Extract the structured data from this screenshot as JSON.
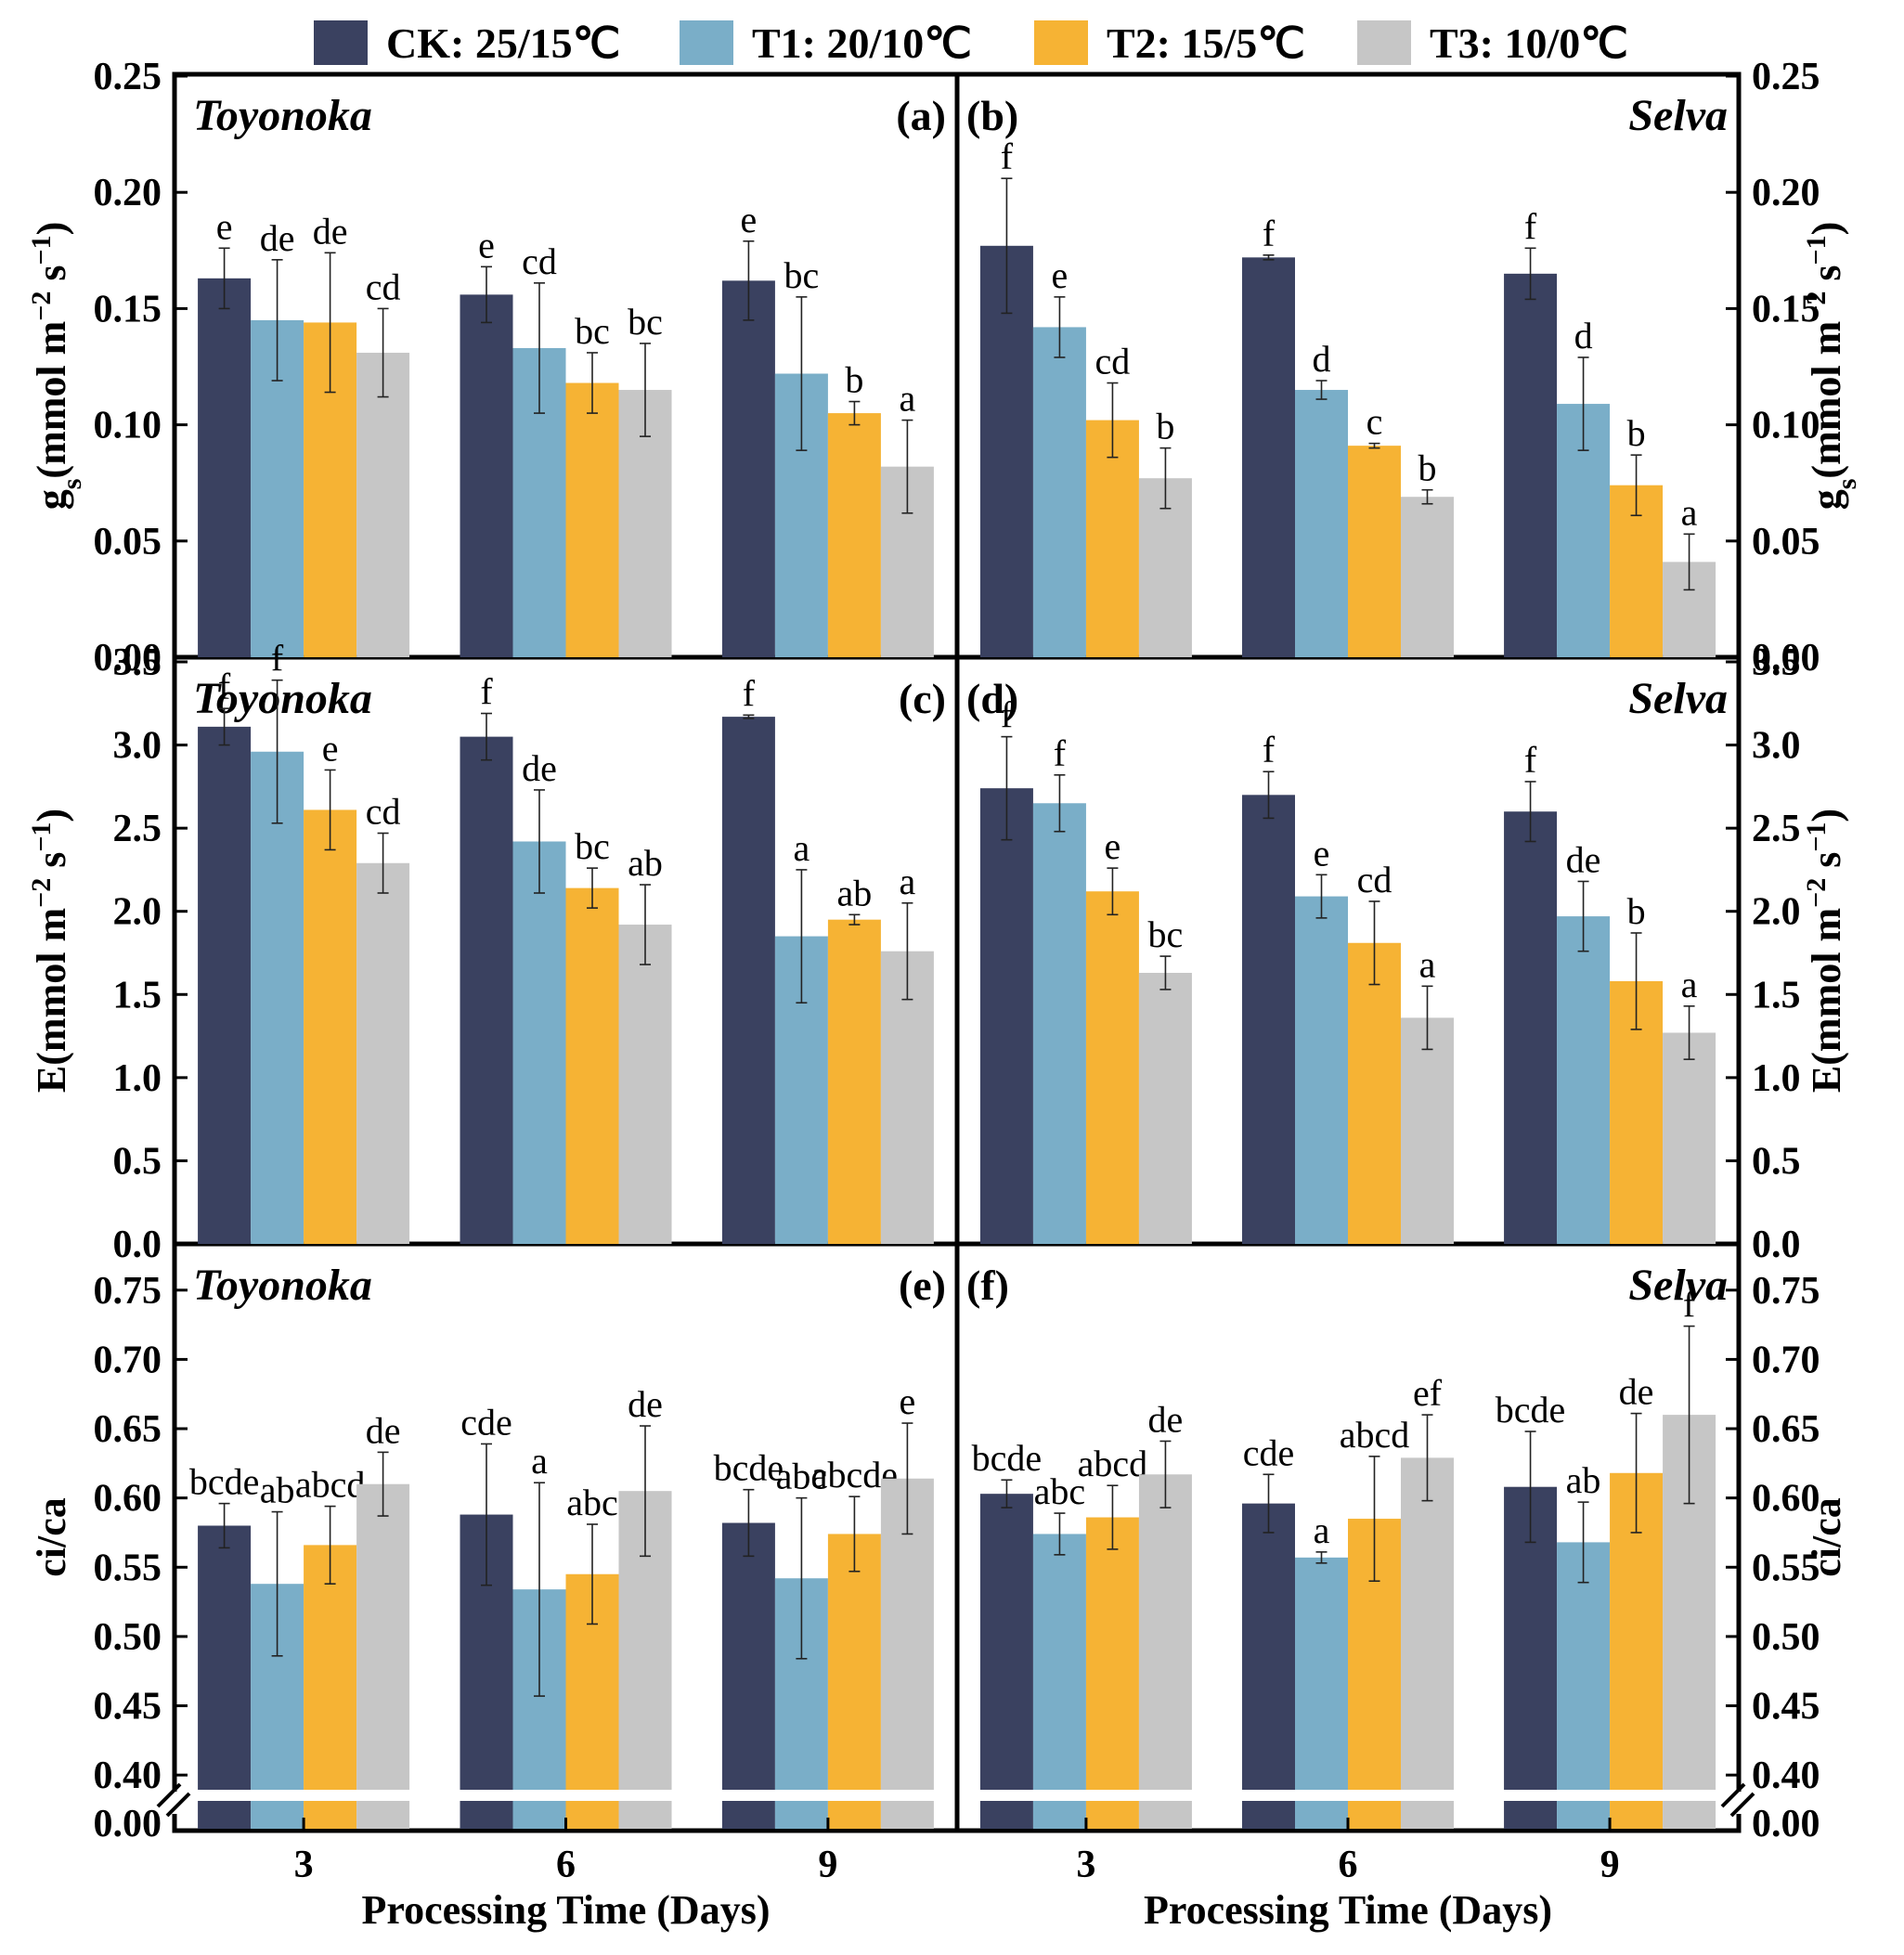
{
  "legend": [
    {
      "label": "CK: 25/15℃",
      "color": "#3a4160"
    },
    {
      "label": "T1: 20/10℃",
      "color": "#7aaec8"
    },
    {
      "label": "T2: 15/5℃",
      "color": "#f6b334"
    },
    {
      "label": "T3: 10/0℃",
      "color": "#c6c6c6"
    }
  ],
  "x_title": "Processing Time (Days)",
  "categories": [
    "3",
    "6",
    "9"
  ],
  "rows": [
    {
      "ylabel": "g_s(mmol m^-2 s^-1)",
      "ylabel_parts": {
        "main": "g",
        "sub": "s",
        "unit": "(mmol m",
        "sup1": "−2",
        "mid": " s",
        "sup2": "−1",
        "end": ")"
      },
      "ylim": [
        0,
        0.25
      ],
      "yticks": [
        "0.00",
        "0.05",
        "0.10",
        "0.15",
        "0.20",
        "0.25"
      ],
      "broken": false
    },
    {
      "ylabel": "E(mmol m^-2 s^-1)",
      "ylabel_parts": {
        "main": "E",
        "sub": "",
        "unit": "(mmol m",
        "sup1": "−2",
        "mid": " s",
        "sup2": "−1",
        "end": ")"
      },
      "ylim": [
        0,
        3.5
      ],
      "yticks": [
        "0.0",
        "0.5",
        "1.0",
        "1.5",
        "2.0",
        "2.5",
        "3.0",
        "3.5"
      ],
      "broken": false
    },
    {
      "ylabel": "ci/ca",
      "ylabel_parts": {
        "main": "ci/ca",
        "sub": "",
        "unit": "",
        "sup1": "",
        "mid": "",
        "sup2": "",
        "end": ""
      },
      "ylim": [
        0.38,
        0.78
      ],
      "yticks": [
        "0.40",
        "0.45",
        "0.50",
        "0.55",
        "0.60",
        "0.65",
        "0.70",
        "0.75"
      ],
      "broken_tick": "0.00",
      "broken": true
    }
  ],
  "chart_data": [
    {
      "type": "bar",
      "panel": "(a)",
      "cultivar": "Toyonoka",
      "row": 0,
      "col": 0,
      "categories": [
        "3",
        "6",
        "9"
      ],
      "series": [
        {
          "name": "CK: 25/15℃",
          "values": [
            0.163,
            0.156,
            0.162
          ],
          "errors": [
            0.013,
            0.012,
            0.017
          ],
          "letters": [
            "e",
            "e",
            "e"
          ]
        },
        {
          "name": "T1: 20/10℃",
          "values": [
            0.145,
            0.133,
            0.122
          ],
          "errors": [
            0.026,
            0.028,
            0.033
          ],
          "letters": [
            "de",
            "cd",
            "bc"
          ]
        },
        {
          "name": "T2: 15/5℃",
          "values": [
            0.144,
            0.118,
            0.105
          ],
          "errors": [
            0.03,
            0.013,
            0.005
          ],
          "letters": [
            "de",
            "bc",
            "b"
          ]
        },
        {
          "name": "T3: 10/0℃",
          "values": [
            0.131,
            0.115,
            0.082
          ],
          "errors": [
            0.019,
            0.02,
            0.02
          ],
          "letters": [
            "cd",
            "bc",
            "a"
          ]
        }
      ]
    },
    {
      "type": "bar",
      "panel": "(b)",
      "cultivar": "Selva",
      "row": 0,
      "col": 1,
      "categories": [
        "3",
        "6",
        "9"
      ],
      "series": [
        {
          "name": "CK: 25/15℃",
          "values": [
            0.177,
            0.172,
            0.165
          ],
          "errors": [
            0.029,
            0.001,
            0.011
          ],
          "letters": [
            "f",
            "f",
            "f"
          ]
        },
        {
          "name": "T1: 20/10℃",
          "values": [
            0.142,
            0.115,
            0.109
          ],
          "errors": [
            0.013,
            0.004,
            0.02
          ],
          "letters": [
            "e",
            "d",
            "d"
          ]
        },
        {
          "name": "T2: 15/5℃",
          "values": [
            0.102,
            0.091,
            0.074
          ],
          "errors": [
            0.016,
            0.001,
            0.013
          ],
          "letters": [
            "cd",
            "c",
            "b"
          ]
        },
        {
          "name": "T3: 10/0℃",
          "values": [
            0.077,
            0.069,
            0.041
          ],
          "errors": [
            0.013,
            0.003,
            0.012
          ],
          "letters": [
            "b",
            "b",
            "a"
          ]
        }
      ]
    },
    {
      "type": "bar",
      "panel": "(c)",
      "cultivar": "Toyonoka",
      "row": 1,
      "col": 0,
      "categories": [
        "3",
        "6",
        "9"
      ],
      "series": [
        {
          "name": "CK: 25/15℃",
          "values": [
            3.11,
            3.05,
            3.17
          ],
          "errors": [
            0.11,
            0.14,
            0.01
          ],
          "letters": [
            "f",
            "f",
            "f"
          ]
        },
        {
          "name": "T1: 20/10℃",
          "values": [
            2.96,
            2.42,
            1.85
          ],
          "errors": [
            0.43,
            0.31,
            0.4
          ],
          "letters": [
            "f",
            "de",
            "a"
          ]
        },
        {
          "name": "T2: 15/5℃",
          "values": [
            2.61,
            2.14,
            1.95
          ],
          "errors": [
            0.24,
            0.12,
            0.03
          ],
          "letters": [
            "e",
            "bc",
            "ab"
          ]
        },
        {
          "name": "T3: 10/0℃",
          "values": [
            2.29,
            1.92,
            1.76
          ],
          "errors": [
            0.18,
            0.24,
            0.29
          ],
          "letters": [
            "cd",
            "ab",
            "a"
          ]
        }
      ]
    },
    {
      "type": "bar",
      "panel": "(d)",
      "cultivar": "Selva",
      "row": 1,
      "col": 1,
      "categories": [
        "3",
        "6",
        "9"
      ],
      "series": [
        {
          "name": "CK: 25/15℃",
          "values": [
            2.74,
            2.7,
            2.6
          ],
          "errors": [
            0.31,
            0.14,
            0.18
          ],
          "letters": [
            "f",
            "f",
            "f"
          ]
        },
        {
          "name": "T1: 20/10℃",
          "values": [
            2.65,
            2.09,
            1.97
          ],
          "errors": [
            0.17,
            0.13,
            0.21
          ],
          "letters": [
            "f",
            "e",
            "de"
          ]
        },
        {
          "name": "T2: 15/5℃",
          "values": [
            2.12,
            1.81,
            1.58
          ],
          "errors": [
            0.14,
            0.25,
            0.29
          ],
          "letters": [
            "e",
            "cd",
            "b"
          ]
        },
        {
          "name": "T3: 10/0℃",
          "values": [
            1.63,
            1.36,
            1.27
          ],
          "errors": [
            0.1,
            0.19,
            0.16
          ],
          "letters": [
            "bc",
            "a",
            "a"
          ]
        }
      ]
    },
    {
      "type": "bar",
      "panel": "(e)",
      "cultivar": "Toyonoka",
      "row": 2,
      "col": 0,
      "categories": [
        "3",
        "6",
        "9"
      ],
      "series": [
        {
          "name": "CK: 25/15℃",
          "values": [
            0.58,
            0.588,
            0.582
          ],
          "errors": [
            0.016,
            0.051,
            0.024
          ],
          "letters": [
            "bcde",
            "cde",
            "bcde"
          ]
        },
        {
          "name": "T1: 20/10℃",
          "values": [
            0.538,
            0.534,
            0.542
          ],
          "errors": [
            0.052,
            0.077,
            0.058
          ],
          "letters": [
            "ab",
            "a",
            "abc"
          ]
        },
        {
          "name": "T2: 15/5℃",
          "values": [
            0.566,
            0.545,
            0.574
          ],
          "errors": [
            0.028,
            0.036,
            0.027
          ],
          "letters": [
            "abcd",
            "abc",
            "abcde"
          ]
        },
        {
          "name": "T3: 10/0℃",
          "values": [
            0.61,
            0.605,
            0.614
          ],
          "errors": [
            0.023,
            0.047,
            0.04
          ],
          "letters": [
            "de",
            "de",
            "e"
          ]
        }
      ]
    },
    {
      "type": "bar",
      "panel": "(f)",
      "cultivar": "Selva",
      "row": 2,
      "col": 1,
      "categories": [
        "3",
        "6",
        "9"
      ],
      "series": [
        {
          "name": "CK: 25/15℃",
          "values": [
            0.603,
            0.596,
            0.608
          ],
          "errors": [
            0.01,
            0.021,
            0.04
          ],
          "letters": [
            "bcde",
            "cde",
            "bcde"
          ]
        },
        {
          "name": "T1: 20/10℃",
          "values": [
            0.574,
            0.557,
            0.568
          ],
          "errors": [
            0.015,
            0.004,
            0.029
          ],
          "letters": [
            "abc",
            "a",
            "ab"
          ]
        },
        {
          "name": "T2: 15/5℃",
          "values": [
            0.586,
            0.585,
            0.618
          ],
          "errors": [
            0.023,
            0.045,
            0.043
          ],
          "letters": [
            "abcd",
            "abcd",
            "de"
          ]
        },
        {
          "name": "T3: 10/0℃",
          "values": [
            0.617,
            0.629,
            0.66
          ],
          "errors": [
            0.024,
            0.031,
            0.064
          ],
          "letters": [
            "de",
            "ef",
            "f"
          ]
        }
      ]
    }
  ]
}
